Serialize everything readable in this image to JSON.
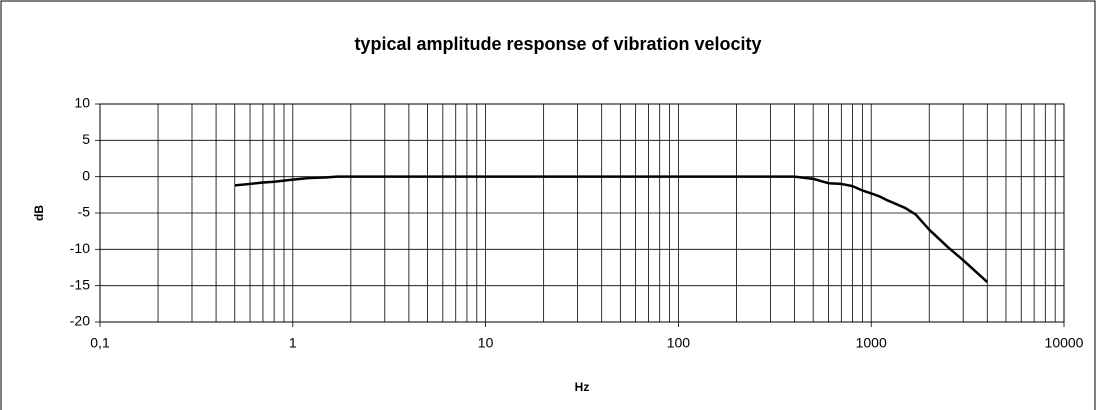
{
  "chart_data": {
    "type": "line",
    "title": "typical amplitude response of vibration velocity",
    "x_label": "Hz",
    "y_label": "dB",
    "x": [
      0.5,
      0.6,
      0.7,
      0.8,
      1,
      1.2,
      1.5,
      1.7,
      2,
      5,
      10,
      50,
      100,
      200,
      400,
      500,
      600,
      700,
      800,
      900,
      1000,
      1100,
      1200,
      1500,
      1700,
      2000,
      2500,
      3000,
      4000
    ],
    "values": [
      -1.2,
      -1.0,
      -0.8,
      -0.7,
      -0.4,
      -0.2,
      -0.1,
      0,
      0,
      0,
      0,
      0,
      0,
      0,
      0,
      -0.3,
      -0.9,
      -1.0,
      -1.3,
      -1.9,
      -2.3,
      -2.7,
      -3.2,
      -4.3,
      -5.2,
      -7.3,
      -9.7,
      -11.5,
      -14.5
    ],
    "color": "#000000",
    "x_log": true,
    "xlim": [
      0.1,
      10000
    ],
    "xticks": [
      {
        "value": 0.1,
        "label": "0,1"
      },
      1,
      10,
      100,
      1000,
      10000
    ],
    "ylim": [
      -20,
      10
    ],
    "yticks": [
      -20,
      -15,
      -10,
      -5,
      0,
      5,
      10
    ],
    "grid": true,
    "x_minor_grid": true
  }
}
